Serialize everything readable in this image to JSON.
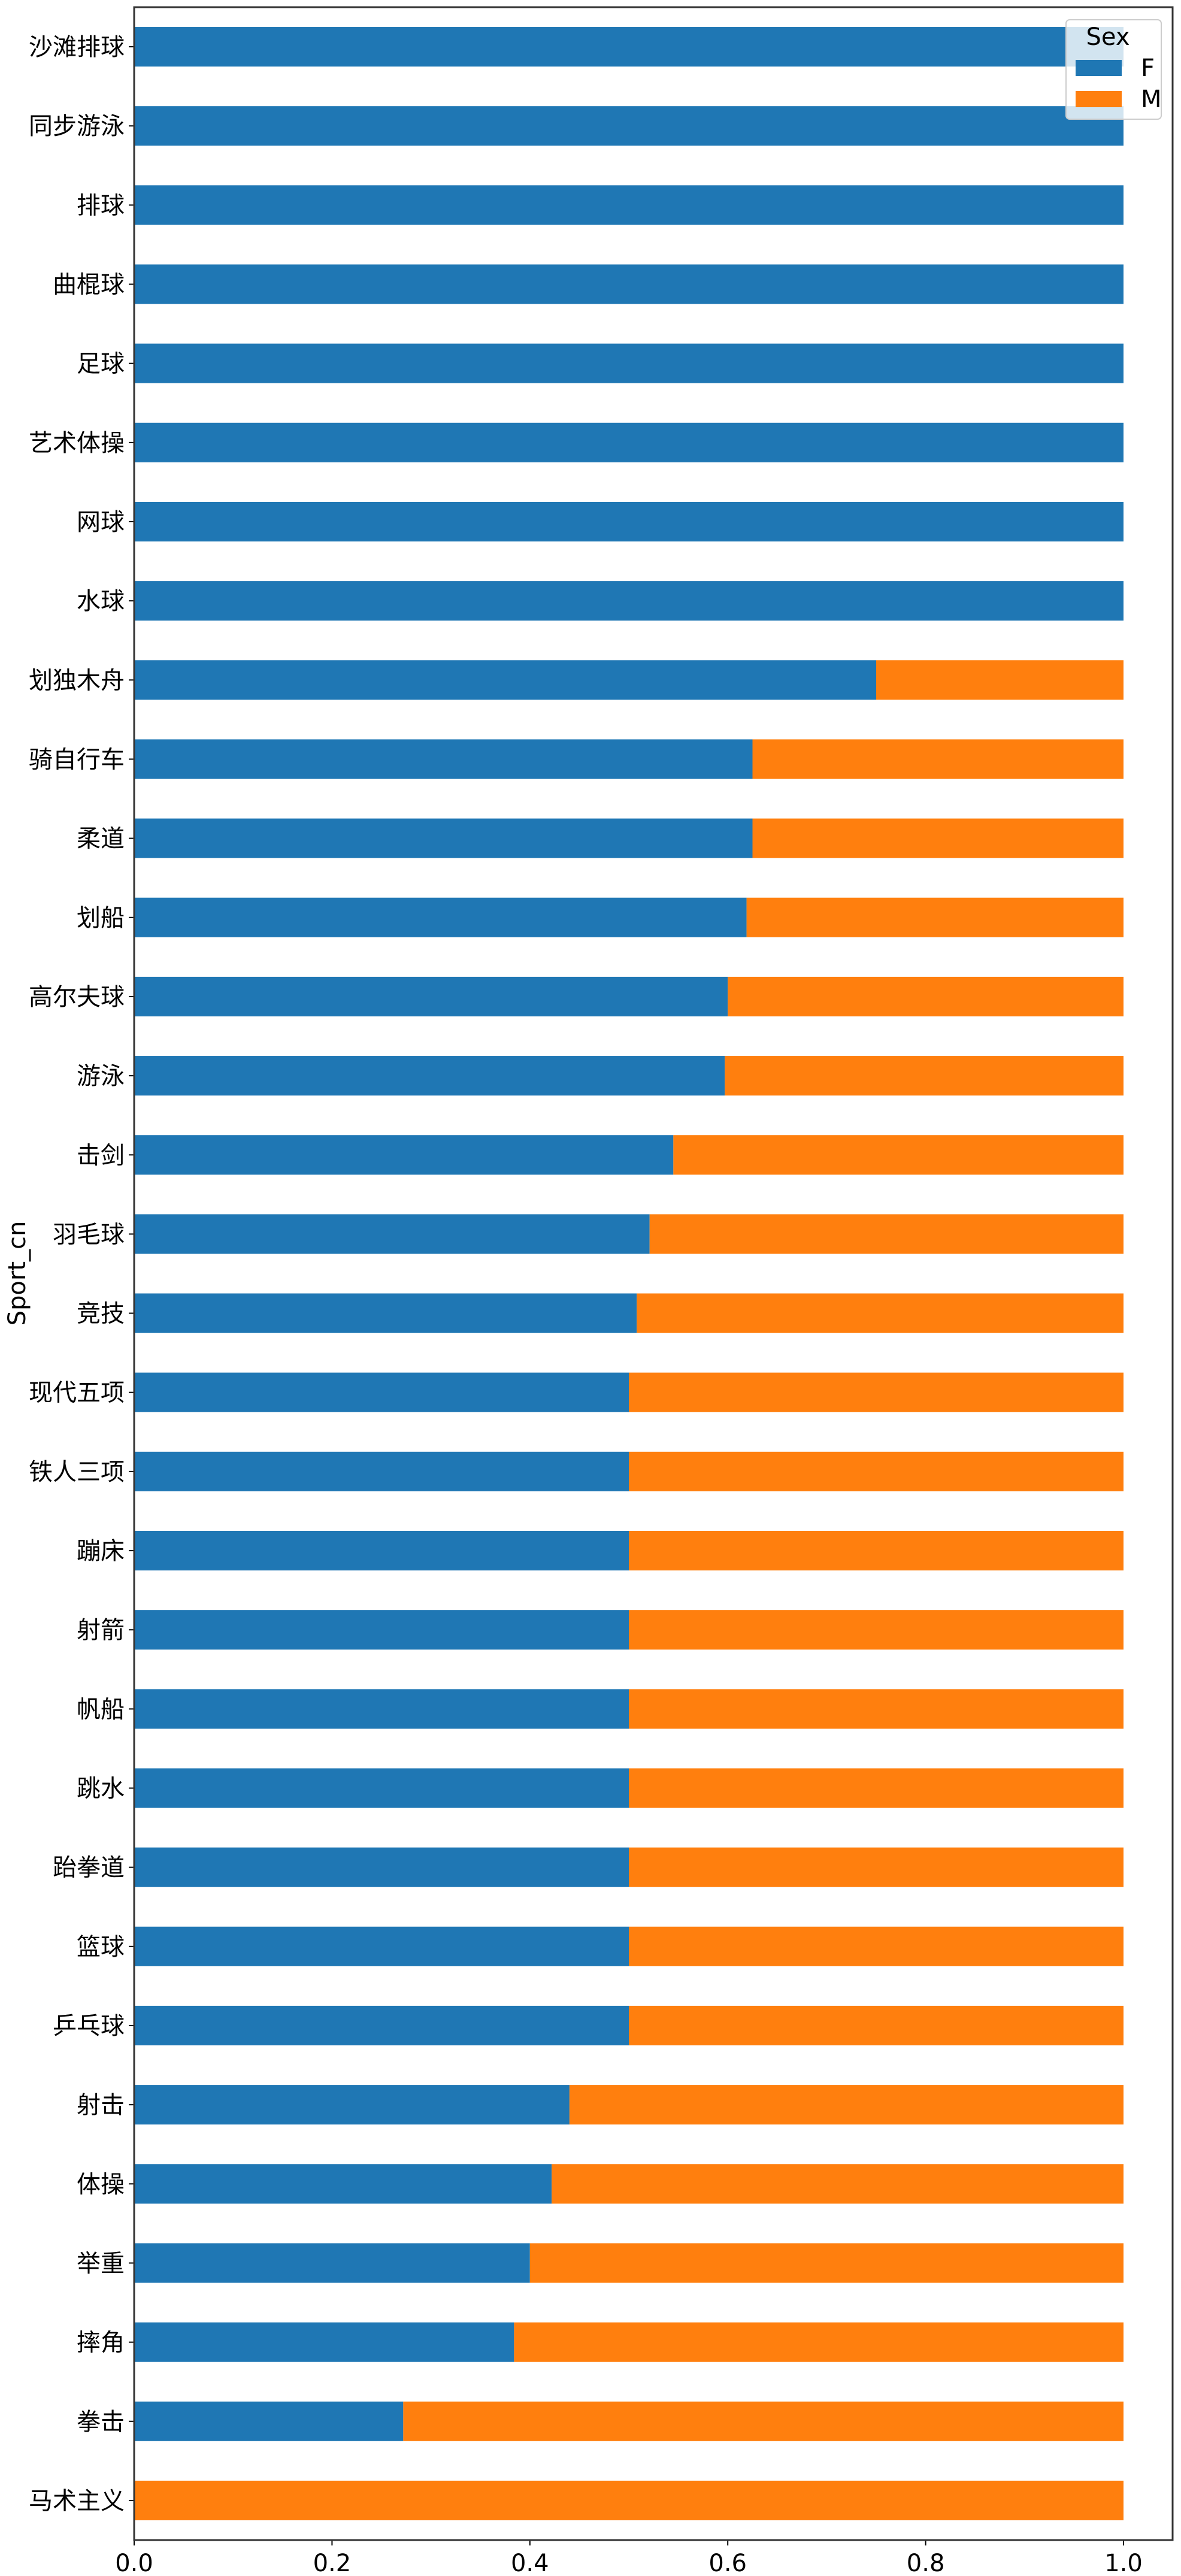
{
  "chart_data": {
    "type": "bar",
    "orientation": "horizontal",
    "stacked": true,
    "ylabel": "Sport_cn",
    "xlabel": "",
    "xlim": [
      0,
      1.05
    ],
    "xticks": [
      "0.0",
      "0.2",
      "0.4",
      "0.6",
      "0.8",
      "1.0"
    ],
    "grid": false,
    "legend": {
      "title": "Sex",
      "placement": "top-right"
    },
    "categories": [
      "沙滩排球",
      "同步游泳",
      "排球",
      "曲棍球",
      "足球",
      "艺术体操",
      "网球",
      "水球",
      "划独木舟",
      "骑自行车",
      "柔道",
      "划船",
      "高尔夫球",
      "游泳",
      "击剑",
      "羽毛球",
      "竞技",
      "现代五项",
      "铁人三项",
      "蹦床",
      "射箭",
      "帆船",
      "跳水",
      "跆拳道",
      "篮球",
      "乒乓球",
      "射击",
      "体操",
      "举重",
      "摔角",
      "拳击",
      "马术主义"
    ],
    "series": [
      {
        "name": "F",
        "color": "#1f77b4",
        "values": [
          1,
          1,
          1,
          1,
          1,
          1,
          1,
          1,
          0.75,
          0.625,
          0.625,
          0.619,
          0.6,
          0.597,
          0.545,
          0.521,
          0.508,
          0.5,
          0.5,
          0.5,
          0.5,
          0.5,
          0.5,
          0.5,
          0.5,
          0.5,
          0.44,
          0.422,
          0.4,
          0.384,
          0.272,
          0
        ]
      },
      {
        "name": "M",
        "color": "#ff7f0e",
        "values": [
          0,
          0,
          0,
          0,
          0,
          0,
          0,
          0,
          0.25,
          0.375,
          0.375,
          0.381,
          0.4,
          0.403,
          0.455,
          0.479,
          0.492,
          0.5,
          0.5,
          0.5,
          0.5,
          0.5,
          0.5,
          0.5,
          0.5,
          0.5,
          0.56,
          0.578,
          0.6,
          0.616,
          0.728,
          1
        ]
      }
    ]
  }
}
